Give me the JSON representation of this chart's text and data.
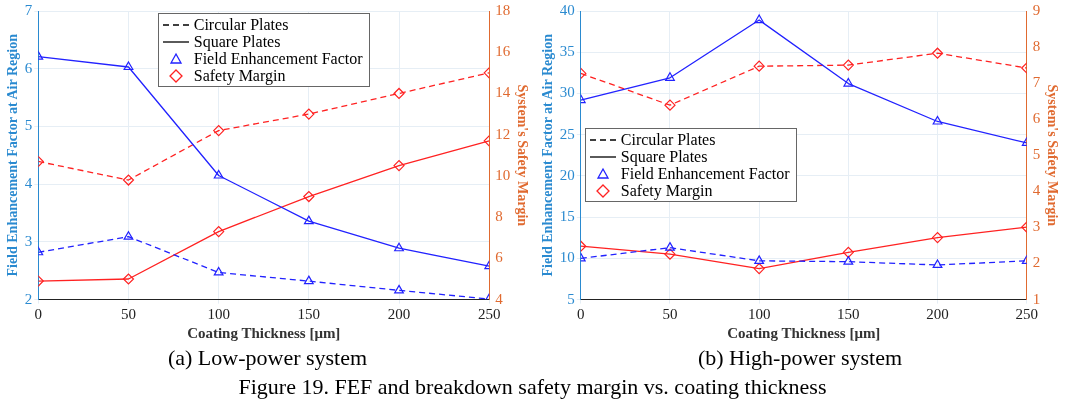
{
  "chart_data": [
    {
      "type": "line",
      "title": "(a) Low-power system",
      "xlabel": "Coating Thickness [μm]",
      "ylabel": "Field Enhancement Factor at Air Region",
      "y2label": "System's Safety Margin",
      "x": [
        0,
        50,
        100,
        150,
        200,
        250
      ],
      "xlim": [
        0,
        250
      ],
      "xticks": [
        0,
        50,
        100,
        150,
        200,
        250
      ],
      "ylim": [
        2,
        7
      ],
      "yticks": [
        2,
        3,
        4,
        5,
        6,
        7
      ],
      "y2lim": [
        4,
        18
      ],
      "y2ticks": [
        4,
        6,
        8,
        10,
        12,
        14,
        16,
        18
      ],
      "grid": true,
      "annotations": [
        "Circular Plates",
        "Square Plates",
        "Field Enhancement Factor",
        "Safety Margin"
      ],
      "series": [
        {
          "color": "#2222ff",
          "line_style": "dashed",
          "marker": "triangle",
          "values": [
            2.82,
            3.09,
            2.47,
            2.32,
            2.16,
            2.01
          ]
        },
        {
          "color": "#2222ff",
          "line_style": "solid",
          "marker": "triangle",
          "values": [
            6.21,
            6.03,
            4.15,
            3.36,
            2.89,
            2.58
          ]
        },
        {
          "color": "#ff2222",
          "line_style": "dashed",
          "marker": "diamond",
          "axis": "y2",
          "values": [
            10.7,
            9.8,
            12.2,
            13.0,
            14.0,
            15.0
          ]
        },
        {
          "color": "#ff2222",
          "line_style": "solid",
          "marker": "diamond",
          "axis": "y2",
          "values": [
            4.9,
            5.0,
            7.3,
            9.0,
            10.5,
            11.7
          ]
        }
      ]
    },
    {
      "type": "line",
      "title": "(b) High-power system",
      "xlabel": "Coating Thickness [μm]",
      "ylabel": "Field Enhancement Factor at Air Region",
      "y2label": "System's Safety Margin",
      "x": [
        0,
        50,
        100,
        150,
        200,
        250
      ],
      "xlim": [
        0,
        250
      ],
      "xticks": [
        0,
        50,
        100,
        150,
        200,
        250
      ],
      "ylim": [
        5,
        40
      ],
      "yticks": [
        5,
        10,
        15,
        20,
        25,
        30,
        35,
        40
      ],
      "y2lim": [
        1,
        9
      ],
      "y2ticks": [
        1,
        2,
        3,
        4,
        5,
        6,
        7,
        8,
        9
      ],
      "grid": true,
      "annotations": [
        "Circular Plates",
        "Square Plates",
        "Field Enhancement Factor",
        "Safety Margin",
        "Figure 19. FEF and breakdown safety margin vs. coating thickness"
      ],
      "series": [
        {
          "color": "#2222ff",
          "line_style": "dashed",
          "marker": "triangle",
          "values": [
            10.0,
            11.3,
            9.7,
            9.6,
            9.2,
            9.7
          ]
        },
        {
          "color": "#2222ff",
          "line_style": "solid",
          "marker": "triangle",
          "values": [
            29.2,
            31.9,
            38.9,
            31.2,
            26.6,
            24.0
          ]
        },
        {
          "color": "#ff2222",
          "line_style": "dashed",
          "marker": "diamond",
          "axis": "y2",
          "values": [
            7.27,
            6.39,
            7.47,
            7.5,
            7.83,
            7.42
          ]
        },
        {
          "color": "#ff2222",
          "line_style": "solid",
          "marker": "diamond",
          "axis": "y2",
          "values": [
            2.48,
            2.26,
            1.86,
            2.31,
            2.72,
            3.01
          ]
        }
      ]
    }
  ]
}
